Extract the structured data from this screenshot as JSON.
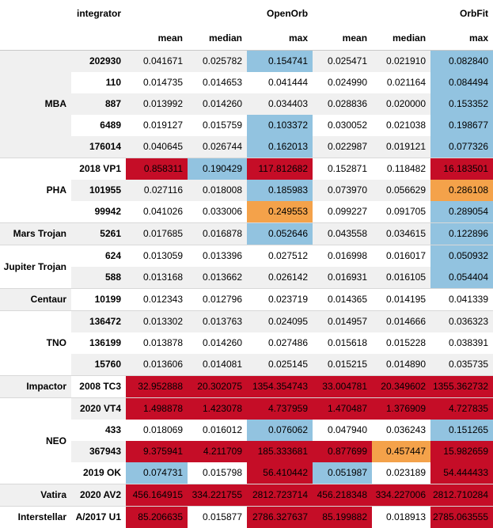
{
  "header": {
    "index_name": "integrator",
    "groups": [
      "OpenOrb",
      "OrbFit"
    ],
    "stats": [
      "mean",
      "median",
      "max",
      "mean",
      "median",
      "max"
    ]
  },
  "colors": {
    "red": "#c50d27",
    "blue": "#92c3e0",
    "orange": "#f4a24a",
    "shade": "#f0f0f0"
  },
  "rows": [
    {
      "group": "MBA",
      "id": "202930",
      "vals": [
        "0.041671",
        "0.025782",
        "0.154741",
        "0.025471",
        "0.021910",
        "0.082840"
      ],
      "cls": [
        "",
        "",
        "blue",
        "",
        "",
        "blue"
      ]
    },
    {
      "group": "",
      "id": "110",
      "vals": [
        "0.014735",
        "0.014653",
        "0.041444",
        "0.024990",
        "0.021164",
        "0.084494"
      ],
      "cls": [
        "",
        "",
        "",
        "",
        "",
        "blue"
      ]
    },
    {
      "group": "",
      "id": "887",
      "vals": [
        "0.013992",
        "0.014260",
        "0.034403",
        "0.028836",
        "0.020000",
        "0.153352"
      ],
      "cls": [
        "",
        "",
        "",
        "",
        "",
        "blue"
      ]
    },
    {
      "group": "",
      "id": "6489",
      "vals": [
        "0.019127",
        "0.015759",
        "0.103372",
        "0.030052",
        "0.021038",
        "0.198677"
      ],
      "cls": [
        "",
        "",
        "blue",
        "",
        "",
        "blue"
      ]
    },
    {
      "group": "",
      "id": "176014",
      "vals": [
        "0.040645",
        "0.026744",
        "0.162013",
        "0.022987",
        "0.019121",
        "0.077326"
      ],
      "cls": [
        "",
        "",
        "blue",
        "",
        "",
        "blue"
      ]
    },
    {
      "group": "PHA",
      "id": "2018 VP1",
      "vals": [
        "0.858311",
        "0.190429",
        "117.812682",
        "0.152871",
        "0.118482",
        "16.183501"
      ],
      "cls": [
        "red",
        "blue",
        "red",
        "",
        "",
        "red"
      ]
    },
    {
      "group": "",
      "id": "101955",
      "vals": [
        "0.027116",
        "0.018008",
        "0.185983",
        "0.073970",
        "0.056629",
        "0.286108"
      ],
      "cls": [
        "",
        "",
        "blue",
        "",
        "",
        "orange"
      ]
    },
    {
      "group": "",
      "id": "99942",
      "vals": [
        "0.041026",
        "0.033006",
        "0.249553",
        "0.099227",
        "0.091705",
        "0.289054"
      ],
      "cls": [
        "",
        "",
        "orange",
        "",
        "",
        "blue"
      ]
    },
    {
      "group": "Mars Trojan",
      "id": "5261",
      "vals": [
        "0.017685",
        "0.016878",
        "0.052646",
        "0.043558",
        "0.034615",
        "0.122896"
      ],
      "cls": [
        "",
        "",
        "blue",
        "",
        "",
        "blue"
      ]
    },
    {
      "group": "Jupiter Trojan",
      "id": "624",
      "vals": [
        "0.013059",
        "0.013396",
        "0.027512",
        "0.016998",
        "0.016017",
        "0.050932"
      ],
      "cls": [
        "",
        "",
        "",
        "",
        "",
        "blue"
      ]
    },
    {
      "group": "",
      "id": "588",
      "vals": [
        "0.013168",
        "0.013662",
        "0.026142",
        "0.016931",
        "0.016105",
        "0.054404"
      ],
      "cls": [
        "",
        "",
        "",
        "",
        "",
        "blue"
      ]
    },
    {
      "group": "Centaur",
      "id": "10199",
      "vals": [
        "0.012343",
        "0.012796",
        "0.023719",
        "0.014365",
        "0.014195",
        "0.041339"
      ],
      "cls": [
        "",
        "",
        "",
        "",
        "",
        ""
      ]
    },
    {
      "group": "TNO",
      "id": "136472",
      "vals": [
        "0.013302",
        "0.013763",
        "0.024095",
        "0.014957",
        "0.014666",
        "0.036323"
      ],
      "cls": [
        "",
        "",
        "",
        "",
        "",
        ""
      ]
    },
    {
      "group": "",
      "id": "136199",
      "vals": [
        "0.013878",
        "0.014260",
        "0.027486",
        "0.015618",
        "0.015228",
        "0.038391"
      ],
      "cls": [
        "",
        "",
        "",
        "",
        "",
        ""
      ]
    },
    {
      "group": "",
      "id": "15760",
      "vals": [
        "0.013606",
        "0.014081",
        "0.025145",
        "0.015215",
        "0.014890",
        "0.035735"
      ],
      "cls": [
        "",
        "",
        "",
        "",
        "",
        ""
      ]
    },
    {
      "group": "Impactor",
      "id": "2008 TC3",
      "vals": [
        "32.952888",
        "20.302075",
        "1354.354743",
        "33.004781",
        "20.349602",
        "1355.362732"
      ],
      "cls": [
        "red",
        "red",
        "red",
        "red",
        "red",
        "red"
      ]
    },
    {
      "group": "NEO",
      "id": "2020 VT4",
      "vals": [
        "1.498878",
        "1.423078",
        "4.737959",
        "1.470487",
        "1.376909",
        "4.727835"
      ],
      "cls": [
        "red",
        "red",
        "red",
        "red",
        "red",
        "red"
      ]
    },
    {
      "group": "",
      "id": "433",
      "vals": [
        "0.018069",
        "0.016012",
        "0.076062",
        "0.047940",
        "0.036243",
        "0.151265"
      ],
      "cls": [
        "",
        "",
        "blue",
        "",
        "",
        "blue"
      ]
    },
    {
      "group": "",
      "id": "367943",
      "vals": [
        "9.375941",
        "4.211709",
        "185.333681",
        "0.877699",
        "0.457447",
        "15.982659"
      ],
      "cls": [
        "red",
        "red",
        "red",
        "red",
        "orange",
        "red"
      ]
    },
    {
      "group": "",
      "id": "2019 OK",
      "vals": [
        "0.074731",
        "0.015798",
        "56.410442",
        "0.051987",
        "0.023189",
        "54.444433"
      ],
      "cls": [
        "blue",
        "",
        "red",
        "blue",
        "",
        "red"
      ]
    },
    {
      "group": "Vatira",
      "id": "2020 AV2",
      "vals": [
        "456.164915",
        "334.221755",
        "2812.723714",
        "456.218348",
        "334.227006",
        "2812.710284"
      ],
      "cls": [
        "red",
        "red",
        "red",
        "red",
        "red",
        "red"
      ]
    },
    {
      "group": "Interstellar",
      "id": "A/2017 U1",
      "vals": [
        "85.206635",
        "0.015877",
        "2786.327637",
        "85.199882",
        "0.018913",
        "2785.063555"
      ],
      "cls": [
        "red",
        "",
        "red",
        "red",
        "",
        "red"
      ]
    }
  ]
}
